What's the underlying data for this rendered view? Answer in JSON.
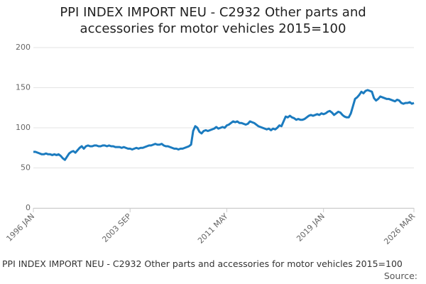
{
  "chart_data": {
    "type": "line",
    "title": "PPI INDEX IMPORT NEU - C2932 Other parts and accessories for motor vehicles 2015=100",
    "caption": "PPI INDEX IMPORT NEU - C2932 Other parts and accessories for motor vehicles 2015=100",
    "source": "Source:",
    "categories": [
      "1996 JAN",
      null,
      null,
      null,
      null,
      null,
      null,
      null,
      null,
      null,
      null,
      null,
      null,
      null,
      null,
      null,
      null,
      null,
      null,
      null,
      null,
      null,
      null,
      null,
      null,
      null,
      null,
      null,
      null,
      null,
      null,
      null,
      null,
      null,
      null,
      null,
      null,
      null,
      null,
      null,
      null,
      null,
      null,
      null,
      null,
      null,
      "2003 SEP",
      null,
      null,
      null,
      null,
      null,
      null,
      null,
      null,
      null,
      null,
      null,
      null,
      null,
      null,
      null,
      null,
      null,
      null,
      null,
      null,
      null,
      null,
      null,
      null,
      null,
      null,
      null,
      null,
      null,
      null,
      null,
      null,
      null,
      null,
      null,
      null,
      null,
      null,
      null,
      null,
      null,
      null,
      null,
      null,
      null,
      "2011 MAY",
      null,
      null,
      null,
      null,
      null,
      null,
      null,
      null,
      null,
      null,
      null,
      null,
      null,
      null,
      null,
      null,
      null,
      null,
      null,
      null,
      null,
      null,
      null,
      null,
      null,
      null,
      null,
      null,
      null,
      null,
      null,
      null,
      null,
      null,
      null,
      null,
      null,
      null,
      null,
      null,
      null,
      null,
      null,
      null,
      null,
      "2019 JAN",
      null,
      null,
      null,
      null,
      null,
      null,
      null,
      null,
      null,
      null,
      null,
      null,
      null,
      null,
      null,
      null,
      null,
      null,
      null,
      null,
      null,
      null,
      null,
      null,
      null,
      null,
      null,
      null,
      null,
      null,
      null,
      null,
      null,
      null,
      null,
      null,
      null,
      null,
      null,
      null,
      null,
      null,
      "2026 MAR"
    ],
    "series": [
      {
        "name": "PPI INDEX IMPORT NEU - C2932",
        "color": "#1b7bbf",
        "values": [
          70,
          70,
          69,
          68,
          67,
          67,
          68,
          67,
          67,
          66,
          67,
          66,
          67,
          65,
          62,
          60,
          64,
          68,
          70,
          71,
          69,
          72,
          75,
          77,
          74,
          77,
          78,
          77,
          77,
          78,
          78,
          77,
          77,
          78,
          78,
          77,
          78,
          77,
          77,
          76,
          76,
          76,
          75,
          76,
          75,
          74,
          74,
          73,
          74,
          75,
          74,
          75,
          75,
          76,
          77,
          78,
          78,
          79,
          80,
          79,
          79,
          80,
          78,
          77,
          77,
          76,
          75,
          74,
          74,
          73,
          74,
          74,
          75,
          76,
          77,
          79,
          96,
          102,
          100,
          95,
          93,
          96,
          97,
          96,
          97,
          98,
          99,
          101,
          99,
          100,
          101,
          100,
          103,
          104,
          106,
          108,
          107,
          108,
          106,
          106,
          105,
          104,
          105,
          108,
          107,
          106,
          104,
          102,
          101,
          100,
          99,
          98,
          99,
          97,
          99,
          98,
          100,
          103,
          102,
          108,
          114,
          113,
          115,
          113,
          112,
          110,
          111,
          110,
          110,
          111,
          113,
          115,
          116,
          115,
          116,
          117,
          116,
          118,
          117,
          118,
          120,
          121,
          119,
          116,
          118,
          120,
          119,
          116,
          114,
          113,
          113,
          118,
          127,
          136,
          138,
          141,
          145,
          143,
          146,
          147,
          146,
          145,
          137,
          134,
          136,
          139,
          138,
          137,
          136,
          136,
          135,
          134,
          133,
          135,
          134,
          131,
          130,
          131,
          131,
          132,
          130,
          131
        ]
      }
    ],
    "ylim": [
      0,
      200
    ],
    "yticks": [
      0,
      50,
      100,
      150,
      200
    ],
    "grid": true
  }
}
